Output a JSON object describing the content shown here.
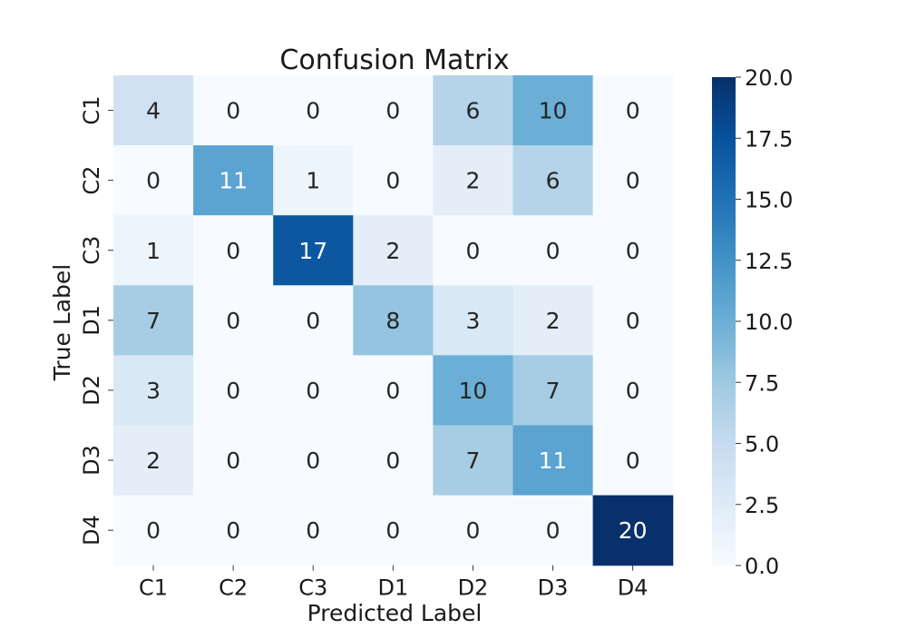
{
  "chart_data": {
    "type": "heatmap",
    "title": "Confusion Matrix",
    "xlabel": "Predicted Label",
    "ylabel": "True Label",
    "x_categories": [
      "C1",
      "C2",
      "C3",
      "D1",
      "D2",
      "D3",
      "D4"
    ],
    "y_categories": [
      "C1",
      "C2",
      "C3",
      "D1",
      "D2",
      "D3",
      "D4"
    ],
    "values": [
      [
        4,
        0,
        0,
        0,
        6,
        10,
        0
      ],
      [
        0,
        11,
        1,
        0,
        2,
        6,
        0
      ],
      [
        1,
        0,
        17,
        2,
        0,
        0,
        0
      ],
      [
        7,
        0,
        0,
        8,
        3,
        2,
        0
      ],
      [
        3,
        0,
        0,
        0,
        10,
        7,
        0
      ],
      [
        2,
        0,
        0,
        0,
        7,
        11,
        0
      ],
      [
        0,
        0,
        0,
        0,
        0,
        0,
        20
      ]
    ],
    "colorbar": {
      "min": 0.0,
      "max": 20.0,
      "ticks": [
        "0.0",
        "2.5",
        "5.0",
        "7.5",
        "10.0",
        "12.5",
        "15.0",
        "17.5",
        "20.0"
      ],
      "colormap": "Blues",
      "low_color": "#f7fbff",
      "high_color": "#08306b"
    },
    "grid": false
  }
}
